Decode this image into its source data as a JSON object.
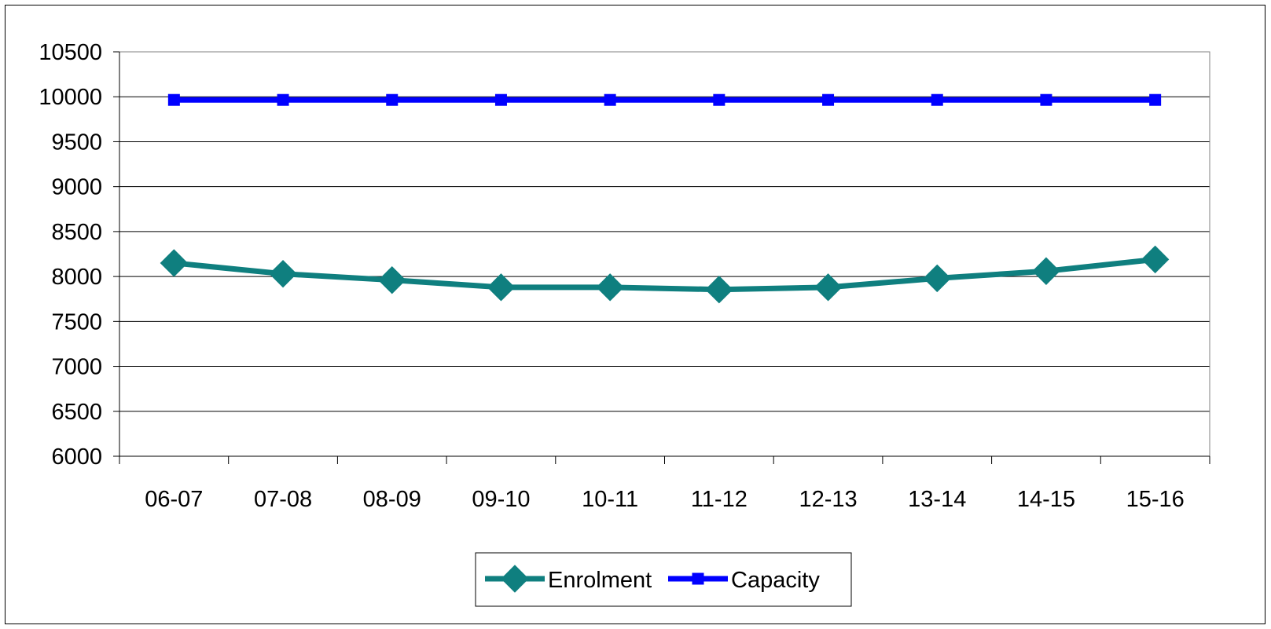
{
  "chart_data": {
    "type": "line",
    "title": "",
    "xlabel": "",
    "ylabel": "",
    "categories": [
      "06-07",
      "07-08",
      "08-09",
      "09-10",
      "10-11",
      "11-12",
      "12-13",
      "13-14",
      "14-15",
      "15-16"
    ],
    "series": [
      {
        "name": "Enrolment",
        "color": "#0f7f7f",
        "marker": "diamond",
        "values": [
          8150,
          8030,
          7960,
          7880,
          7880,
          7855,
          7880,
          7980,
          8060,
          8190
        ]
      },
      {
        "name": "Capacity",
        "color": "#0000ff",
        "marker": "square",
        "values": [
          9965,
          9965,
          9965,
          9965,
          9965,
          9965,
          9965,
          9965,
          9965,
          9965
        ]
      }
    ],
    "ylim": [
      6000,
      10500
    ],
    "yticks": [
      "10500",
      "10000",
      "9500",
      "9000",
      "8500",
      "8000",
      "7500",
      "7000",
      "6500",
      "6000"
    ],
    "grid": true,
    "legend_position": "bottom"
  }
}
